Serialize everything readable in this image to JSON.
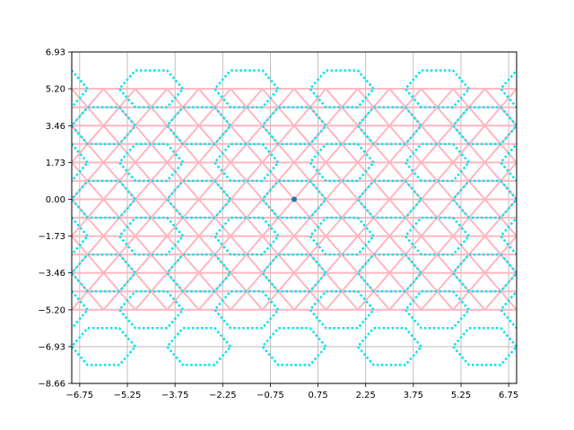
{
  "chart_data": {
    "type": "line",
    "title": "",
    "xlabel": "",
    "ylabel": "",
    "xlim": [
      -7.0,
      7.0
    ],
    "ylim": [
      -8.66,
      6.93
    ],
    "grid": true,
    "x_ticks": [
      "−6.75",
      "−5.25",
      "−3.75",
      "−2.25",
      "−0.75",
      "0.75",
      "2.25",
      "3.75",
      "5.25",
      "6.75"
    ],
    "x_tick_values": [
      -6.75,
      -5.25,
      -3.75,
      -2.25,
      -0.75,
      0.75,
      2.25,
      3.75,
      5.25,
      6.75
    ],
    "y_ticks": [
      "−8.66",
      "−6.93",
      "−5.20",
      "−3.46",
      "−1.73",
      "0.00",
      "1.73",
      "3.46",
      "5.20",
      "6.93"
    ],
    "y_tick_values": [
      -8.66,
      -6.93,
      -5.2,
      -3.46,
      -1.73,
      0.0,
      1.73,
      3.46,
      5.2,
      6.93
    ],
    "series": [
      {
        "kind": "triangular-lattice",
        "color": "#ffb6c1",
        "style": "solid",
        "x_range": [
          -7.0,
          7.0
        ],
        "y_range": [
          -5.196,
          5.196
        ],
        "row_spacing": 0.866,
        "edge_length": 1.0
      },
      {
        "kind": "hexagonal-outline",
        "color": "#00e5ee",
        "style": "dotted",
        "hex_radius": 1.0,
        "center_spacing_x": 3.0,
        "center_spacing_y": 1.732,
        "center_offset_x": -6.0,
        "center_offset_y": 0.0,
        "y_range": [
          -6.062,
          5.196
        ]
      },
      {
        "kind": "point",
        "color": "#1f77b4",
        "x": 0.0,
        "y": 0.0
      }
    ]
  }
}
